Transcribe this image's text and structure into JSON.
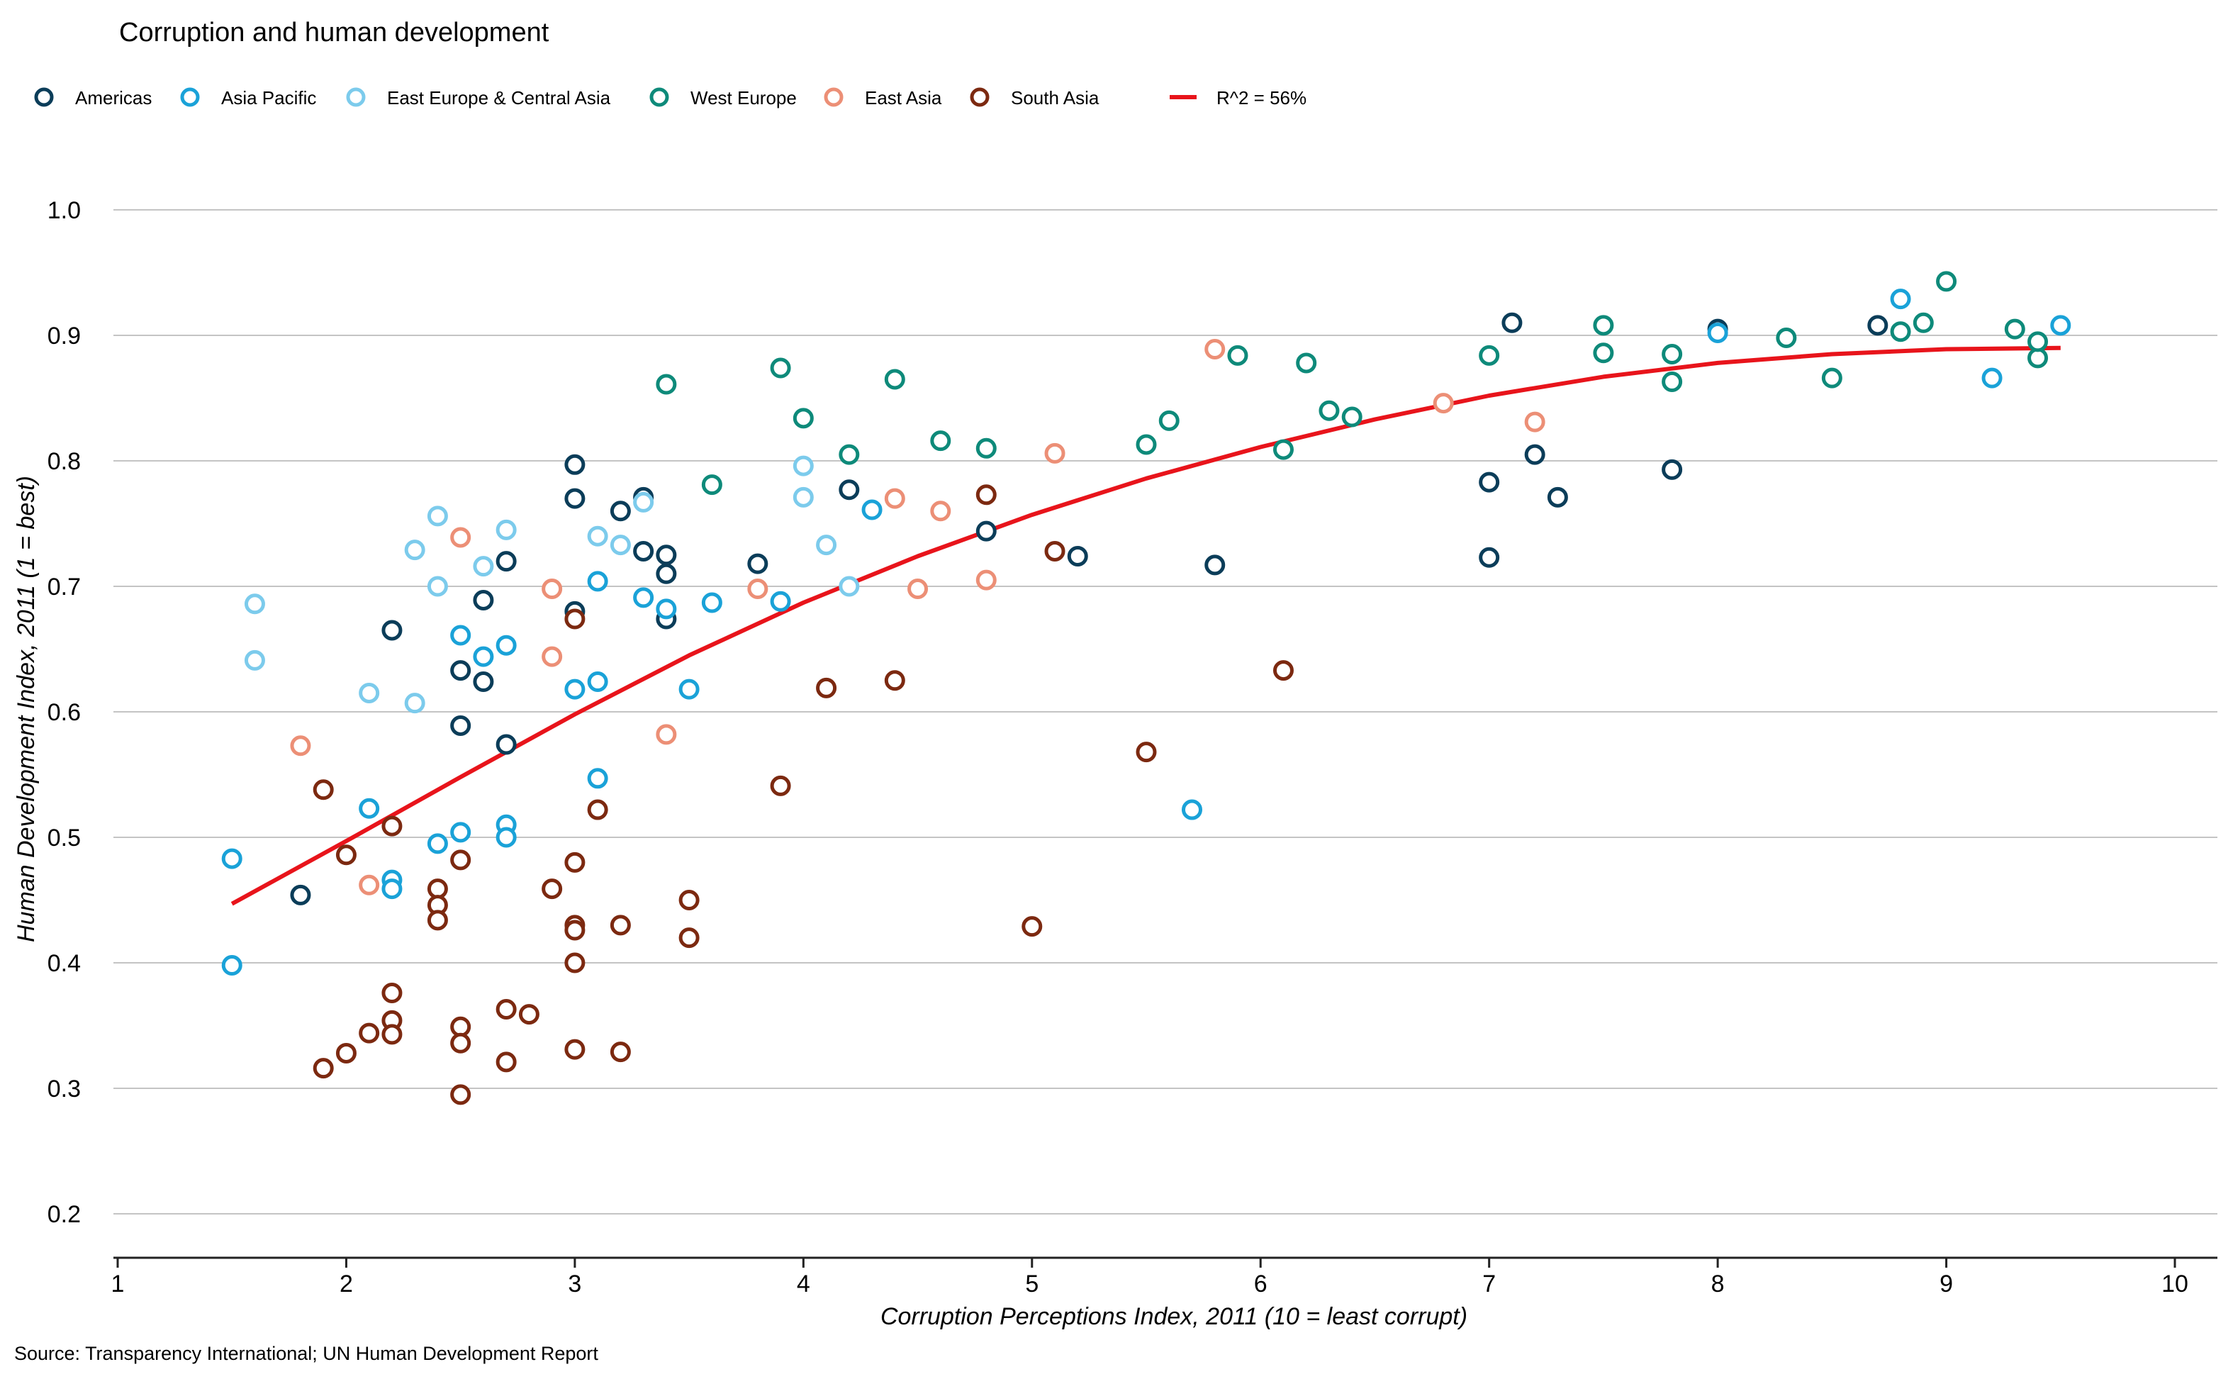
{
  "chart_data": {
    "type": "scatter",
    "title": "Corruption and human development",
    "xlabel": "Corruption Perceptions Index, 2011 (10 = least corrupt)",
    "ylabel": "Human Development Index, 2011 (1 = best)",
    "source": "Source: Transparency International; UN Human Development Report",
    "xlim": [
      1,
      10
    ],
    "ylim": [
      0.2,
      1.0
    ],
    "x_ticks": [
      "1",
      "2",
      "3",
      "4",
      "5",
      "6",
      "7",
      "8",
      "9",
      "10"
    ],
    "y_ticks": [
      "0.2",
      "0.3",
      "0.4",
      "0.5",
      "0.6",
      "0.7",
      "0.8",
      "0.9",
      "1.0"
    ],
    "grid": "horizontal",
    "legend_position": "top-left",
    "series": [
      {
        "name": "Americas",
        "color": "#0b3d59",
        "points": [
          [
            1.8,
            0.454
          ],
          [
            2.2,
            0.665
          ],
          [
            2.5,
            0.589
          ],
          [
            2.5,
            0.633
          ],
          [
            2.6,
            0.689
          ],
          [
            2.6,
            0.624
          ],
          [
            2.7,
            0.72
          ],
          [
            2.7,
            0.574
          ],
          [
            3.0,
            0.797
          ],
          [
            3.0,
            0.77
          ],
          [
            3.0,
            0.68
          ],
          [
            3.2,
            0.76
          ],
          [
            3.3,
            0.771
          ],
          [
            3.3,
            0.728
          ],
          [
            3.4,
            0.725
          ],
          [
            3.4,
            0.71
          ],
          [
            3.4,
            0.674
          ],
          [
            3.8,
            0.718
          ],
          [
            4.2,
            0.777
          ],
          [
            4.8,
            0.744
          ],
          [
            5.2,
            0.724
          ],
          [
            5.8,
            0.717
          ],
          [
            7.0,
            0.783
          ],
          [
            7.0,
            0.723
          ],
          [
            7.1,
            0.91
          ],
          [
            7.2,
            0.805
          ],
          [
            7.3,
            0.771
          ],
          [
            7.8,
            0.793
          ],
          [
            8.0,
            0.905
          ],
          [
            8.7,
            0.908
          ]
        ]
      },
      {
        "name": "Asia Pacific",
        "color": "#1aa2d8",
        "points": [
          [
            1.5,
            0.483
          ],
          [
            1.5,
            0.398
          ],
          [
            2.1,
            0.523
          ],
          [
            2.2,
            0.466
          ],
          [
            2.2,
            0.459
          ],
          [
            2.4,
            0.495
          ],
          [
            2.5,
            0.661
          ],
          [
            2.5,
            0.504
          ],
          [
            2.6,
            0.644
          ],
          [
            2.7,
            0.653
          ],
          [
            2.7,
            0.51
          ],
          [
            2.7,
            0.5
          ],
          [
            3.0,
            0.618
          ],
          [
            3.1,
            0.704
          ],
          [
            3.1,
            0.624
          ],
          [
            3.1,
            0.547
          ],
          [
            3.3,
            0.691
          ],
          [
            3.4,
            0.682
          ],
          [
            3.5,
            0.618
          ],
          [
            3.6,
            0.687
          ],
          [
            3.9,
            0.688
          ],
          [
            4.3,
            0.761
          ],
          [
            5.7,
            0.522
          ],
          [
            8.0,
            0.902
          ],
          [
            8.8,
            0.929
          ],
          [
            9.2,
            0.866
          ],
          [
            9.5,
            0.908
          ]
        ]
      },
      {
        "name": "East Europe & Central Asia",
        "color": "#7ccbec",
        "points": [
          [
            1.6,
            0.686
          ],
          [
            1.6,
            0.641
          ],
          [
            2.1,
            0.615
          ],
          [
            2.3,
            0.729
          ],
          [
            2.3,
            0.607
          ],
          [
            2.4,
            0.756
          ],
          [
            2.4,
            0.7
          ],
          [
            2.6,
            0.716
          ],
          [
            2.7,
            0.745
          ],
          [
            3.1,
            0.74
          ],
          [
            3.2,
            0.733
          ],
          [
            3.3,
            0.767
          ],
          [
            4.0,
            0.796
          ],
          [
            4.0,
            0.771
          ],
          [
            4.1,
            0.733
          ],
          [
            4.2,
            0.7
          ]
        ]
      },
      {
        "name": "West Europe",
        "color": "#0e8a7a",
        "points": [
          [
            3.4,
            0.861
          ],
          [
            3.6,
            0.781
          ],
          [
            3.9,
            0.874
          ],
          [
            4.0,
            0.834
          ],
          [
            4.2,
            0.805
          ],
          [
            4.4,
            0.865
          ],
          [
            4.6,
            0.816
          ],
          [
            4.8,
            0.81
          ],
          [
            5.5,
            0.813
          ],
          [
            5.6,
            0.832
          ],
          [
            5.9,
            0.884
          ],
          [
            6.1,
            0.809
          ],
          [
            6.2,
            0.878
          ],
          [
            6.3,
            0.84
          ],
          [
            6.4,
            0.835
          ],
          [
            7.0,
            0.884
          ],
          [
            7.5,
            0.908
          ],
          [
            7.5,
            0.886
          ],
          [
            7.8,
            0.885
          ],
          [
            7.8,
            0.863
          ],
          [
            8.3,
            0.898
          ],
          [
            8.5,
            0.866
          ],
          [
            8.8,
            0.903
          ],
          [
            8.9,
            0.91
          ],
          [
            9.0,
            0.943
          ],
          [
            9.3,
            0.905
          ],
          [
            9.4,
            0.882
          ],
          [
            9.4,
            0.895
          ]
        ]
      },
      {
        "name": "East Asia",
        "color": "#ec8f76",
        "points": [
          [
            1.8,
            0.573
          ],
          [
            2.1,
            0.462
          ],
          [
            2.5,
            0.739
          ],
          [
            2.9,
            0.698
          ],
          [
            2.9,
            0.644
          ],
          [
            3.4,
            0.582
          ],
          [
            3.8,
            0.698
          ],
          [
            4.4,
            0.77
          ],
          [
            4.5,
            0.698
          ],
          [
            4.6,
            0.76
          ],
          [
            4.8,
            0.705
          ],
          [
            5.1,
            0.806
          ],
          [
            5.8,
            0.889
          ],
          [
            6.8,
            0.846
          ],
          [
            7.2,
            0.831
          ]
        ]
      },
      {
        "name": "South Asia",
        "color": "#7c2910",
        "points": [
          [
            1.9,
            0.538
          ],
          [
            1.9,
            0.316
          ],
          [
            2.0,
            0.486
          ],
          [
            2.0,
            0.328
          ],
          [
            2.1,
            0.344
          ],
          [
            2.2,
            0.509
          ],
          [
            2.2,
            0.376
          ],
          [
            2.2,
            0.354
          ],
          [
            2.2,
            0.343
          ],
          [
            2.4,
            0.459
          ],
          [
            2.4,
            0.446
          ],
          [
            2.4,
            0.434
          ],
          [
            2.5,
            0.482
          ],
          [
            2.5,
            0.349
          ],
          [
            2.5,
            0.336
          ],
          [
            2.5,
            0.295
          ],
          [
            2.7,
            0.363
          ],
          [
            2.7,
            0.321
          ],
          [
            2.8,
            0.359
          ],
          [
            2.9,
            0.459
          ],
          [
            3.0,
            0.674
          ],
          [
            3.0,
            0.48
          ],
          [
            3.0,
            0.43
          ],
          [
            3.0,
            0.426
          ],
          [
            3.0,
            0.4
          ],
          [
            3.0,
            0.331
          ],
          [
            3.1,
            0.522
          ],
          [
            3.2,
            0.43
          ],
          [
            3.2,
            0.329
          ],
          [
            3.5,
            0.45
          ],
          [
            3.5,
            0.42
          ],
          [
            3.9,
            0.541
          ],
          [
            4.1,
            0.619
          ],
          [
            4.4,
            0.625
          ],
          [
            4.8,
            0.773
          ],
          [
            5.0,
            0.429
          ],
          [
            5.1,
            0.728
          ],
          [
            5.5,
            0.568
          ],
          [
            6.1,
            0.633
          ]
        ]
      }
    ],
    "trendline": {
      "name": "R^2 = 56%",
      "color": "#e8141b",
      "points": [
        [
          1.5,
          0.447
        ],
        [
          2.0,
          0.497
        ],
        [
          2.5,
          0.548
        ],
        [
          3.0,
          0.598
        ],
        [
          3.5,
          0.645
        ],
        [
          4.0,
          0.687
        ],
        [
          4.5,
          0.724
        ],
        [
          5.0,
          0.757
        ],
        [
          5.5,
          0.786
        ],
        [
          6.0,
          0.811
        ],
        [
          6.5,
          0.833
        ],
        [
          7.0,
          0.852
        ],
        [
          7.5,
          0.867
        ],
        [
          8.0,
          0.878
        ],
        [
          8.5,
          0.885
        ],
        [
          9.0,
          0.889
        ],
        [
          9.5,
          0.89
        ]
      ]
    }
  }
}
